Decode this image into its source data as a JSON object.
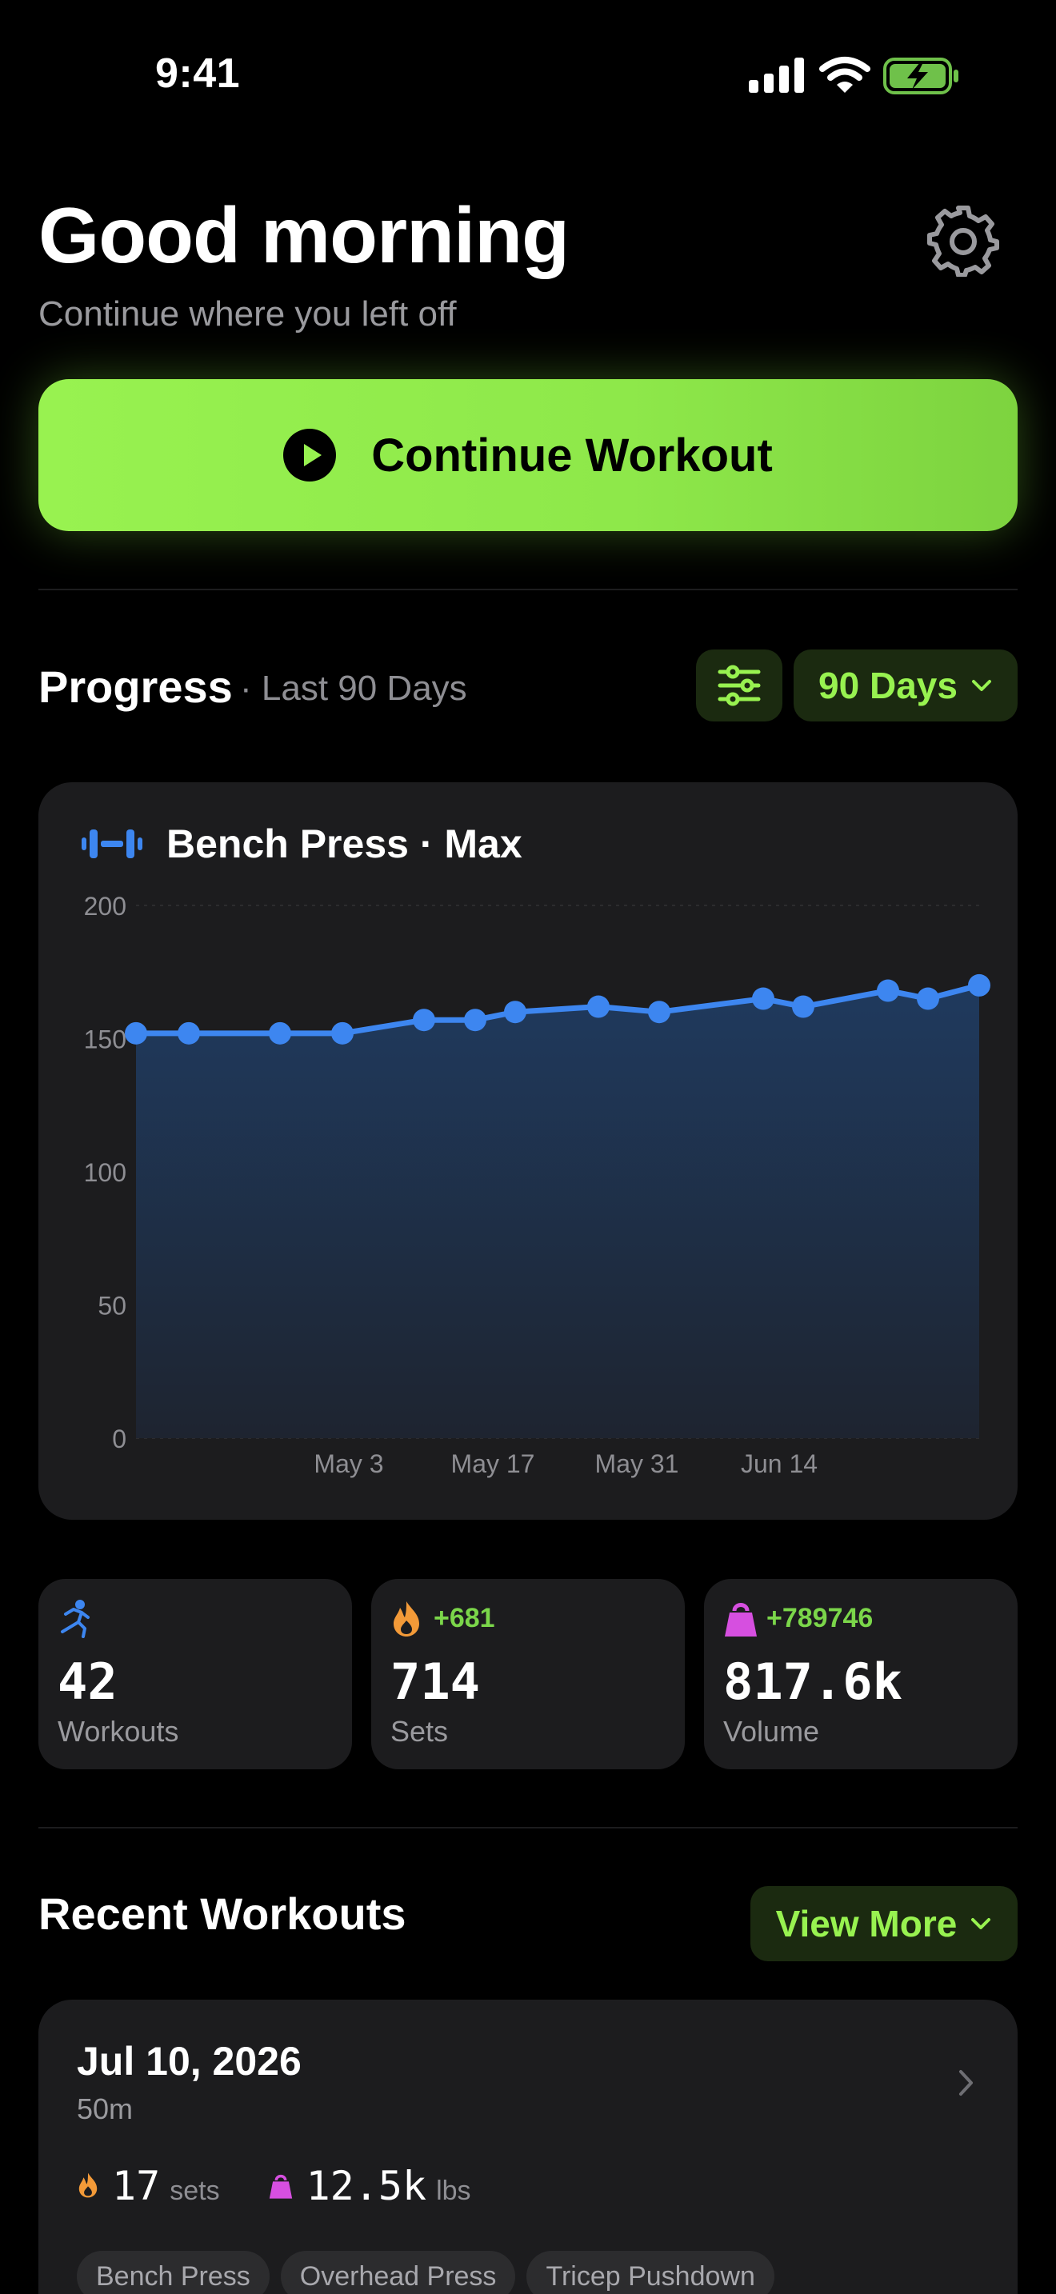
{
  "status_bar": {
    "time": "9:41"
  },
  "header": {
    "greeting": "Good morning",
    "subtitle": "Continue where you left off",
    "settings_icon": "gear-icon"
  },
  "continue_button": {
    "label": "Continue Workout",
    "icon": "play-icon"
  },
  "progress": {
    "title": "Progress",
    "subtitle": "· Last 90 Days",
    "range_label": "90 Days"
  },
  "chart_card": {
    "title": "Bench Press · Max",
    "icon": "dumbbell-icon"
  },
  "chart_data": {
    "type": "area",
    "title": "Bench Press · Max",
    "y_ticks": [
      "200",
      "150",
      "100",
      "50",
      "0"
    ],
    "ylim": [
      0,
      200
    ],
    "x_tick_labels": [
      "May 3",
      "May 17",
      "May 31",
      "Jun 14"
    ],
    "grid": true,
    "series": [
      {
        "color": "#3d86f0",
        "values": [
          152,
          152,
          152,
          152,
          157,
          157,
          160,
          162,
          160,
          165,
          162,
          168,
          165,
          170
        ]
      }
    ]
  },
  "stats": [
    {
      "icon": "runner-icon",
      "delta": "",
      "value": "42",
      "label": "Workouts",
      "color": "#3d86f0"
    },
    {
      "icon": "flame-icon",
      "delta": "+681",
      "value": "714",
      "label": "Sets",
      "color": "#f39a38"
    },
    {
      "icon": "kettlebell-icon",
      "delta": "+789746",
      "value": "817.6k",
      "label": "Volume",
      "color": "#d64fe0"
    }
  ],
  "recent": {
    "title": "Recent Workouts",
    "view_more_label": "View More",
    "workout": {
      "date": "Jul 10, 2026",
      "duration": "50m",
      "sets_value": "17",
      "sets_unit": "sets",
      "volume_value": "12.5k",
      "volume_unit": "lbs",
      "tags": [
        "Bench Press",
        "Overhead Press",
        "Tricep Pushdown"
      ]
    }
  }
}
